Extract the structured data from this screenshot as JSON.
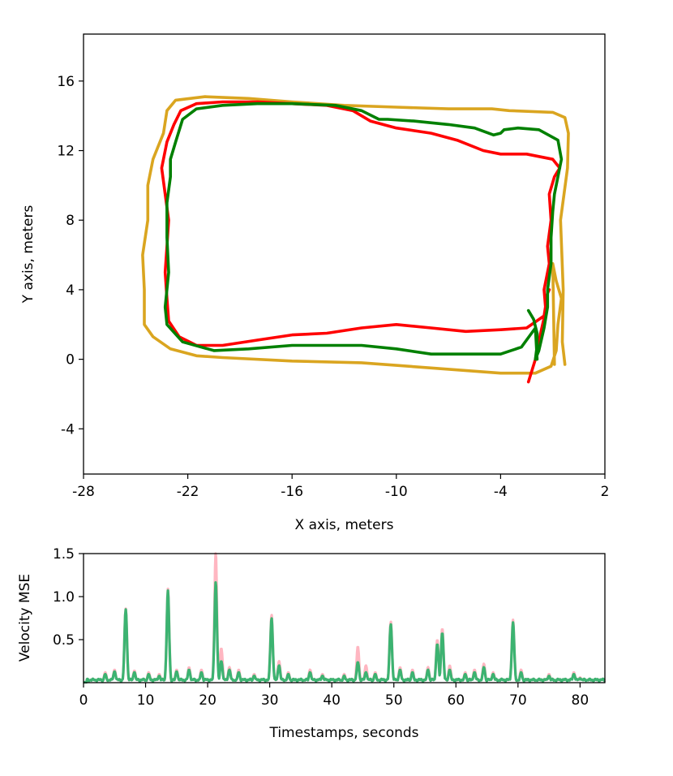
{
  "chart_data": [
    {
      "type": "line",
      "title": "",
      "xlabel": "X axis, meters",
      "ylabel": "Y axis, meters",
      "xlim": [
        -28,
        2
      ],
      "ylim": [
        -6.6,
        18.7
      ],
      "xticks": [
        -28,
        -22,
        -16,
        -10,
        -4,
        2
      ],
      "yticks": [
        -4,
        0,
        4,
        8,
        12,
        16
      ],
      "xtick_labels": [
        "-28",
        "-22",
        "-16",
        "-10",
        "-4",
        "2"
      ],
      "ytick_labels": [
        "-4",
        "0",
        "4",
        "8",
        "12",
        "16"
      ],
      "series": [
        {
          "name": "orange trajectory",
          "color": "#daa520",
          "points": [
            [
              -0.3,
              -0.3
            ],
            [
              -0.45,
              1.0
            ],
            [
              -0.4,
              4.0
            ],
            [
              -0.55,
              8.0
            ],
            [
              -0.15,
              11.0
            ],
            [
              -0.1,
              13.0
            ],
            [
              -0.3,
              13.9
            ],
            [
              -1.0,
              14.2
            ],
            [
              -3.5,
              14.3
            ],
            [
              -4.5,
              14.4
            ],
            [
              -7.0,
              14.4
            ],
            [
              -10.0,
              14.5
            ],
            [
              -13.0,
              14.6
            ],
            [
              -16.0,
              14.8
            ],
            [
              -18.5,
              15.0
            ],
            [
              -21.0,
              15.1
            ],
            [
              -22.7,
              14.9
            ],
            [
              -23.2,
              14.3
            ],
            [
              -23.4,
              13.0
            ],
            [
              -24.0,
              11.5
            ],
            [
              -24.3,
              10.0
            ],
            [
              -24.3,
              8.0
            ],
            [
              -24.6,
              6.0
            ],
            [
              -24.5,
              4.0
            ],
            [
              -24.5,
              2.0
            ],
            [
              -24.0,
              1.3
            ],
            [
              -23.0,
              0.6
            ],
            [
              -21.5,
              0.2
            ],
            [
              -20.0,
              0.1
            ],
            [
              -16.0,
              -0.1
            ],
            [
              -12.0,
              -0.2
            ],
            [
              -8.0,
              -0.5
            ],
            [
              -4.0,
              -0.8
            ],
            [
              -2.0,
              -0.8
            ],
            [
              -1.1,
              -0.4
            ],
            [
              -0.8,
              0.5
            ],
            [
              -0.7,
              2.0
            ],
            [
              -0.5,
              3.5
            ],
            [
              -0.8,
              4.5
            ],
            [
              -1.0,
              5.5
            ],
            [
              -0.9,
              -0.3
            ]
          ]
        },
        {
          "name": "red trajectory",
          "color": "#ff0000",
          "points": [
            [
              -2.4,
              -1.3
            ],
            [
              -2.0,
              0.0
            ],
            [
              -1.7,
              1.5
            ],
            [
              -1.4,
              2.8
            ],
            [
              -1.5,
              4.0
            ],
            [
              -1.2,
              5.5
            ],
            [
              -1.3,
              6.5
            ],
            [
              -1.1,
              8.0
            ],
            [
              -1.2,
              9.5
            ],
            [
              -0.9,
              10.5
            ],
            [
              -0.6,
              11.0
            ],
            [
              -1.0,
              11.5
            ],
            [
              -2.5,
              11.8
            ],
            [
              -4.0,
              11.8
            ],
            [
              -5.0,
              12.0
            ],
            [
              -6.5,
              12.6
            ],
            [
              -8.0,
              13.0
            ],
            [
              -10.0,
              13.3
            ],
            [
              -11.5,
              13.7
            ],
            [
              -12.5,
              14.3
            ],
            [
              -14.0,
              14.6
            ],
            [
              -16.0,
              14.7
            ],
            [
              -18.0,
              14.8
            ],
            [
              -20.0,
              14.8
            ],
            [
              -21.5,
              14.7
            ],
            [
              -22.4,
              14.3
            ],
            [
              -22.8,
              13.5
            ],
            [
              -23.2,
              12.5
            ],
            [
              -23.5,
              11.0
            ],
            [
              -23.3,
              9.5
            ],
            [
              -23.1,
              8.0
            ],
            [
              -23.2,
              6.5
            ],
            [
              -23.3,
              5.0
            ],
            [
              -23.2,
              3.5
            ],
            [
              -23.1,
              2.2
            ],
            [
              -22.5,
              1.3
            ],
            [
              -21.5,
              0.8
            ],
            [
              -20.0,
              0.8
            ],
            [
              -18.0,
              1.1
            ],
            [
              -16.0,
              1.4
            ],
            [
              -14.0,
              1.5
            ],
            [
              -12.0,
              1.8
            ],
            [
              -10.0,
              2.0
            ],
            [
              -8.0,
              1.8
            ],
            [
              -6.0,
              1.6
            ],
            [
              -4.0,
              1.7
            ],
            [
              -2.5,
              1.8
            ],
            [
              -1.5,
              2.5
            ],
            [
              -1.3,
              3.8
            ],
            [
              -1.2,
              4.0
            ]
          ]
        },
        {
          "name": "green trajectory",
          "color": "#008000",
          "points": [
            [
              -2.4,
              2.8
            ],
            [
              -2.1,
              2.3
            ],
            [
              -1.9,
              1.5
            ],
            [
              -1.9,
              0.8
            ],
            [
              -2.0,
              0.0
            ],
            [
              -1.8,
              0.5
            ],
            [
              -1.5,
              1.8
            ],
            [
              -1.3,
              3.0
            ],
            [
              -1.3,
              4.0
            ],
            [
              -1.1,
              5.5
            ],
            [
              -1.1,
              7.0
            ],
            [
              -1.0,
              8.5
            ],
            [
              -0.9,
              9.5
            ],
            [
              -0.7,
              10.5
            ],
            [
              -0.5,
              11.5
            ],
            [
              -0.7,
              12.6
            ],
            [
              -1.8,
              13.2
            ],
            [
              -3.0,
              13.3
            ],
            [
              -3.8,
              13.2
            ],
            [
              -4.0,
              13.0
            ],
            [
              -4.4,
              12.9
            ],
            [
              -5.5,
              13.3
            ],
            [
              -7.0,
              13.5
            ],
            [
              -9.0,
              13.7
            ],
            [
              -10.5,
              13.8
            ],
            [
              -11.0,
              13.8
            ],
            [
              -12.0,
              14.3
            ],
            [
              -13.5,
              14.6
            ],
            [
              -16.0,
              14.7
            ],
            [
              -18.0,
              14.7
            ],
            [
              -20.0,
              14.6
            ],
            [
              -21.5,
              14.4
            ],
            [
              -22.3,
              13.8
            ],
            [
              -22.7,
              12.5
            ],
            [
              -23.0,
              11.5
            ],
            [
              -23.0,
              10.5
            ],
            [
              -23.2,
              9.0
            ],
            [
              -23.2,
              7.0
            ],
            [
              -23.1,
              5.0
            ],
            [
              -23.3,
              3.0
            ],
            [
              -23.2,
              2.0
            ],
            [
              -22.3,
              1.0
            ],
            [
              -20.5,
              0.5
            ],
            [
              -18.5,
              0.6
            ],
            [
              -16.0,
              0.8
            ],
            [
              -14.0,
              0.8
            ],
            [
              -12.0,
              0.8
            ],
            [
              -10.0,
              0.6
            ],
            [
              -8.0,
              0.3
            ],
            [
              -6.0,
              0.3
            ],
            [
              -4.0,
              0.3
            ],
            [
              -2.8,
              0.7
            ],
            [
              -2.0,
              1.8
            ],
            [
              -1.9,
              0.0
            ]
          ]
        }
      ]
    },
    {
      "type": "line",
      "title": "",
      "xlabel": "Timestamps, seconds",
      "ylabel": "Velocity MSE",
      "xlim": [
        0,
        84
      ],
      "ylim": [
        0,
        1.5
      ],
      "xticks": [
        0,
        10,
        20,
        30,
        40,
        50,
        60,
        70,
        80
      ],
      "yticks": [
        0.5,
        1.0,
        1.5
      ],
      "xtick_labels": [
        "0",
        "10",
        "20",
        "30",
        "40",
        "50",
        "60",
        "70",
        "80"
      ],
      "ytick_labels": [
        "0.5",
        "1.0",
        "1.5"
      ],
      "baseline": 0.05,
      "spike_width": 0.28,
      "series": [
        {
          "name": "pink",
          "color": "#ffb6c1",
          "peaks": [
            [
              3.5,
              0.12
            ],
            [
              5.0,
              0.15
            ],
            [
              6.8,
              0.86
            ],
            [
              8.2,
              0.14
            ],
            [
              10.5,
              0.12
            ],
            [
              12.2,
              0.1
            ],
            [
              13.6,
              1.09
            ],
            [
              15.0,
              0.15
            ],
            [
              17.0,
              0.18
            ],
            [
              19.0,
              0.15
            ],
            [
              21.3,
              1.52
            ],
            [
              22.2,
              0.4
            ],
            [
              23.5,
              0.18
            ],
            [
              25.0,
              0.15
            ],
            [
              27.5,
              0.1
            ],
            [
              30.3,
              0.79
            ],
            [
              31.5,
              0.25
            ],
            [
              33.0,
              0.12
            ],
            [
              36.5,
              0.15
            ],
            [
              38.5,
              0.1
            ],
            [
              42.0,
              0.1
            ],
            [
              44.2,
              0.42
            ],
            [
              45.5,
              0.2
            ],
            [
              47.0,
              0.12
            ],
            [
              49.5,
              0.71
            ],
            [
              51.0,
              0.18
            ],
            [
              53.0,
              0.15
            ],
            [
              55.5,
              0.18
            ],
            [
              57.0,
              0.5
            ],
            [
              57.8,
              0.63
            ],
            [
              59.0,
              0.2
            ],
            [
              61.5,
              0.12
            ],
            [
              63.0,
              0.15
            ],
            [
              64.5,
              0.22
            ],
            [
              66.0,
              0.12
            ],
            [
              69.2,
              0.73
            ],
            [
              70.5,
              0.15
            ],
            [
              75.0,
              0.1
            ],
            [
              79.0,
              0.12
            ],
            [
              80.0,
              0.06
            ]
          ]
        },
        {
          "name": "green",
          "color": "#3cb371",
          "peaks": [
            [
              3.5,
              0.1
            ],
            [
              5.0,
              0.13
            ],
            [
              6.8,
              0.85
            ],
            [
              8.2,
              0.12
            ],
            [
              10.5,
              0.1
            ],
            [
              12.2,
              0.08
            ],
            [
              13.6,
              1.07
            ],
            [
              15.0,
              0.13
            ],
            [
              17.0,
              0.15
            ],
            [
              19.0,
              0.12
            ],
            [
              21.3,
              1.17
            ],
            [
              22.2,
              0.25
            ],
            [
              23.5,
              0.15
            ],
            [
              25.0,
              0.12
            ],
            [
              27.5,
              0.08
            ],
            [
              30.3,
              0.75
            ],
            [
              31.5,
              0.2
            ],
            [
              33.0,
              0.1
            ],
            [
              36.5,
              0.12
            ],
            [
              38.5,
              0.08
            ],
            [
              42.0,
              0.08
            ],
            [
              44.2,
              0.24
            ],
            [
              45.5,
              0.12
            ],
            [
              47.0,
              0.1
            ],
            [
              49.5,
              0.68
            ],
            [
              51.0,
              0.15
            ],
            [
              53.0,
              0.12
            ],
            [
              55.5,
              0.15
            ],
            [
              57.0,
              0.45
            ],
            [
              57.8,
              0.58
            ],
            [
              59.0,
              0.15
            ],
            [
              61.5,
              0.1
            ],
            [
              63.0,
              0.12
            ],
            [
              64.5,
              0.18
            ],
            [
              66.0,
              0.1
            ],
            [
              69.2,
              0.7
            ],
            [
              70.5,
              0.12
            ],
            [
              75.0,
              0.08
            ],
            [
              79.0,
              0.1
            ],
            [
              80.0,
              0.05
            ]
          ]
        }
      ]
    }
  ]
}
